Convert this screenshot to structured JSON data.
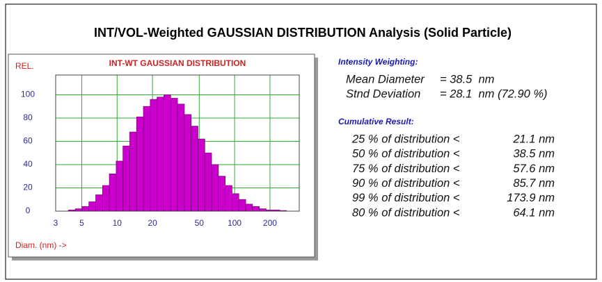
{
  "title": "INT/VOL-Weighted GAUSSIAN DISTRIBUTION Analysis (Solid Particle)",
  "intensity": {
    "heading": "Intensity Weighting:",
    "rows": [
      {
        "label": "Mean Diameter",
        "value": "= 38.5  nm"
      },
      {
        "label": "Stnd Deviation",
        "value": "= 28.1  nm (72.90 %)"
      }
    ]
  },
  "cumulative": {
    "heading": "Cumulative Result:",
    "rows": [
      {
        "label": "25 % of distribution <",
        "value": "21.1 nm"
      },
      {
        "label": "50 % of distribution <",
        "value": "38.5 nm"
      },
      {
        "label": "75 % of distribution <",
        "value": "57.6 nm"
      },
      {
        "label": "90 % of distribution <",
        "value": "85.7 nm"
      },
      {
        "label": "99 % of distribution <",
        "value": "173.9 nm"
      },
      {
        "label": "80 % of distribution <",
        "value": "64.1 nm"
      }
    ]
  },
  "chart_data": {
    "type": "histogram",
    "title": "INT-WT GAUSSIAN DISTRIBUTION",
    "ylabel": "REL.",
    "xlabel": "Diam. (nm) ->",
    "bins": [
      3.85,
      4.41,
      5.04,
      5.75,
      6.58,
      7.52,
      8.59,
      9.82,
      11.22,
      12.82,
      14.66,
      16.75,
      19.14,
      21.88,
      25.0,
      28.58,
      32.66,
      37.33,
      42.66,
      48.75,
      55.72,
      63.68,
      72.78,
      83.18,
      95.06,
      108.6,
      124.2,
      141.9,
      162.2,
      185.4,
      211.8,
      242.1,
      276.7
    ],
    "values": [
      1,
      2,
      4,
      8,
      14,
      22,
      32,
      43,
      56,
      68,
      81,
      90,
      96,
      98,
      100,
      97,
      92,
      83,
      73,
      62,
      50,
      40,
      30,
      22,
      15,
      10,
      6,
      4,
      2,
      1,
      1,
      0.5
    ],
    "color": "#cc00cc",
    "xlim": [
      3,
      355
    ],
    "xticks": [
      3,
      5,
      10,
      20,
      50,
      100,
      200
    ],
    "log_x": true,
    "ylim": [
      0,
      117
    ],
    "yticks": [
      0,
      20,
      40,
      60,
      80,
      100
    ],
    "grid": true,
    "grid_color": "#2eaa2e"
  }
}
